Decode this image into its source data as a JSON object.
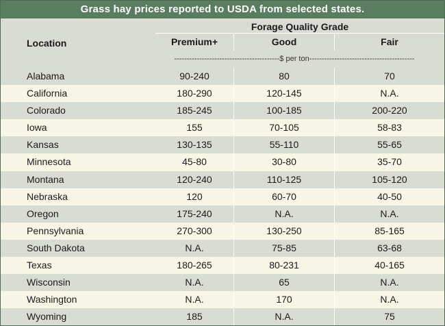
{
  "title": "Grass hay prices reported to USDA from selected states.",
  "header": {
    "location": "Location",
    "group": "Forage Quality Grade",
    "premium": "Premium+",
    "good": "Good",
    "fair": "Fair",
    "unit": "------------------------------------------$ per ton------------------------------------------"
  },
  "rows": [
    {
      "location": "Alabama",
      "premium": "90-240",
      "good": "80",
      "fair": "70"
    },
    {
      "location": "California",
      "premium": "180-290",
      "good": "120-145",
      "fair": "N.A."
    },
    {
      "location": "Colorado",
      "premium": "185-245",
      "good": "100-185",
      "fair": "200-220"
    },
    {
      "location": "Iowa",
      "premium": "155",
      "good": "70-105",
      "fair": "58-83"
    },
    {
      "location": "Kansas",
      "premium": "130-135",
      "good": "55-110",
      "fair": "55-65"
    },
    {
      "location": "Minnesota",
      "premium": "45-80",
      "good": "30-80",
      "fair": "35-70"
    },
    {
      "location": "Montana",
      "premium": "120-240",
      "good": "110-125",
      "fair": "105-120"
    },
    {
      "location": "Nebraska",
      "premium": "120",
      "good": "60-70",
      "fair": "40-50"
    },
    {
      "location": "Oregon",
      "premium": "175-240",
      "good": "N.A.",
      "fair": "N.A."
    },
    {
      "location": "Pennsylvania",
      "premium": "270-300",
      "good": "130-250",
      "fair": "85-165"
    },
    {
      "location": "South Dakota",
      "premium": "N.A.",
      "good": "75-85",
      "fair": "63-68"
    },
    {
      "location": "Texas",
      "premium": "180-265",
      "good": "80-231",
      "fair": "40-165"
    },
    {
      "location": "Wisconsin",
      "premium": "N.A.",
      "good": "65",
      "fair": "N.A."
    },
    {
      "location": "Washington",
      "premium": "N.A.",
      "good": "170",
      "fair": "N.A."
    },
    {
      "location": "Wyoming",
      "premium": "185",
      "good": "N.A.",
      "fair": "75"
    }
  ],
  "colors": {
    "title_bg": "#5b7d5f",
    "band": "#d8dcd3",
    "paper": "#f8f6e6"
  }
}
